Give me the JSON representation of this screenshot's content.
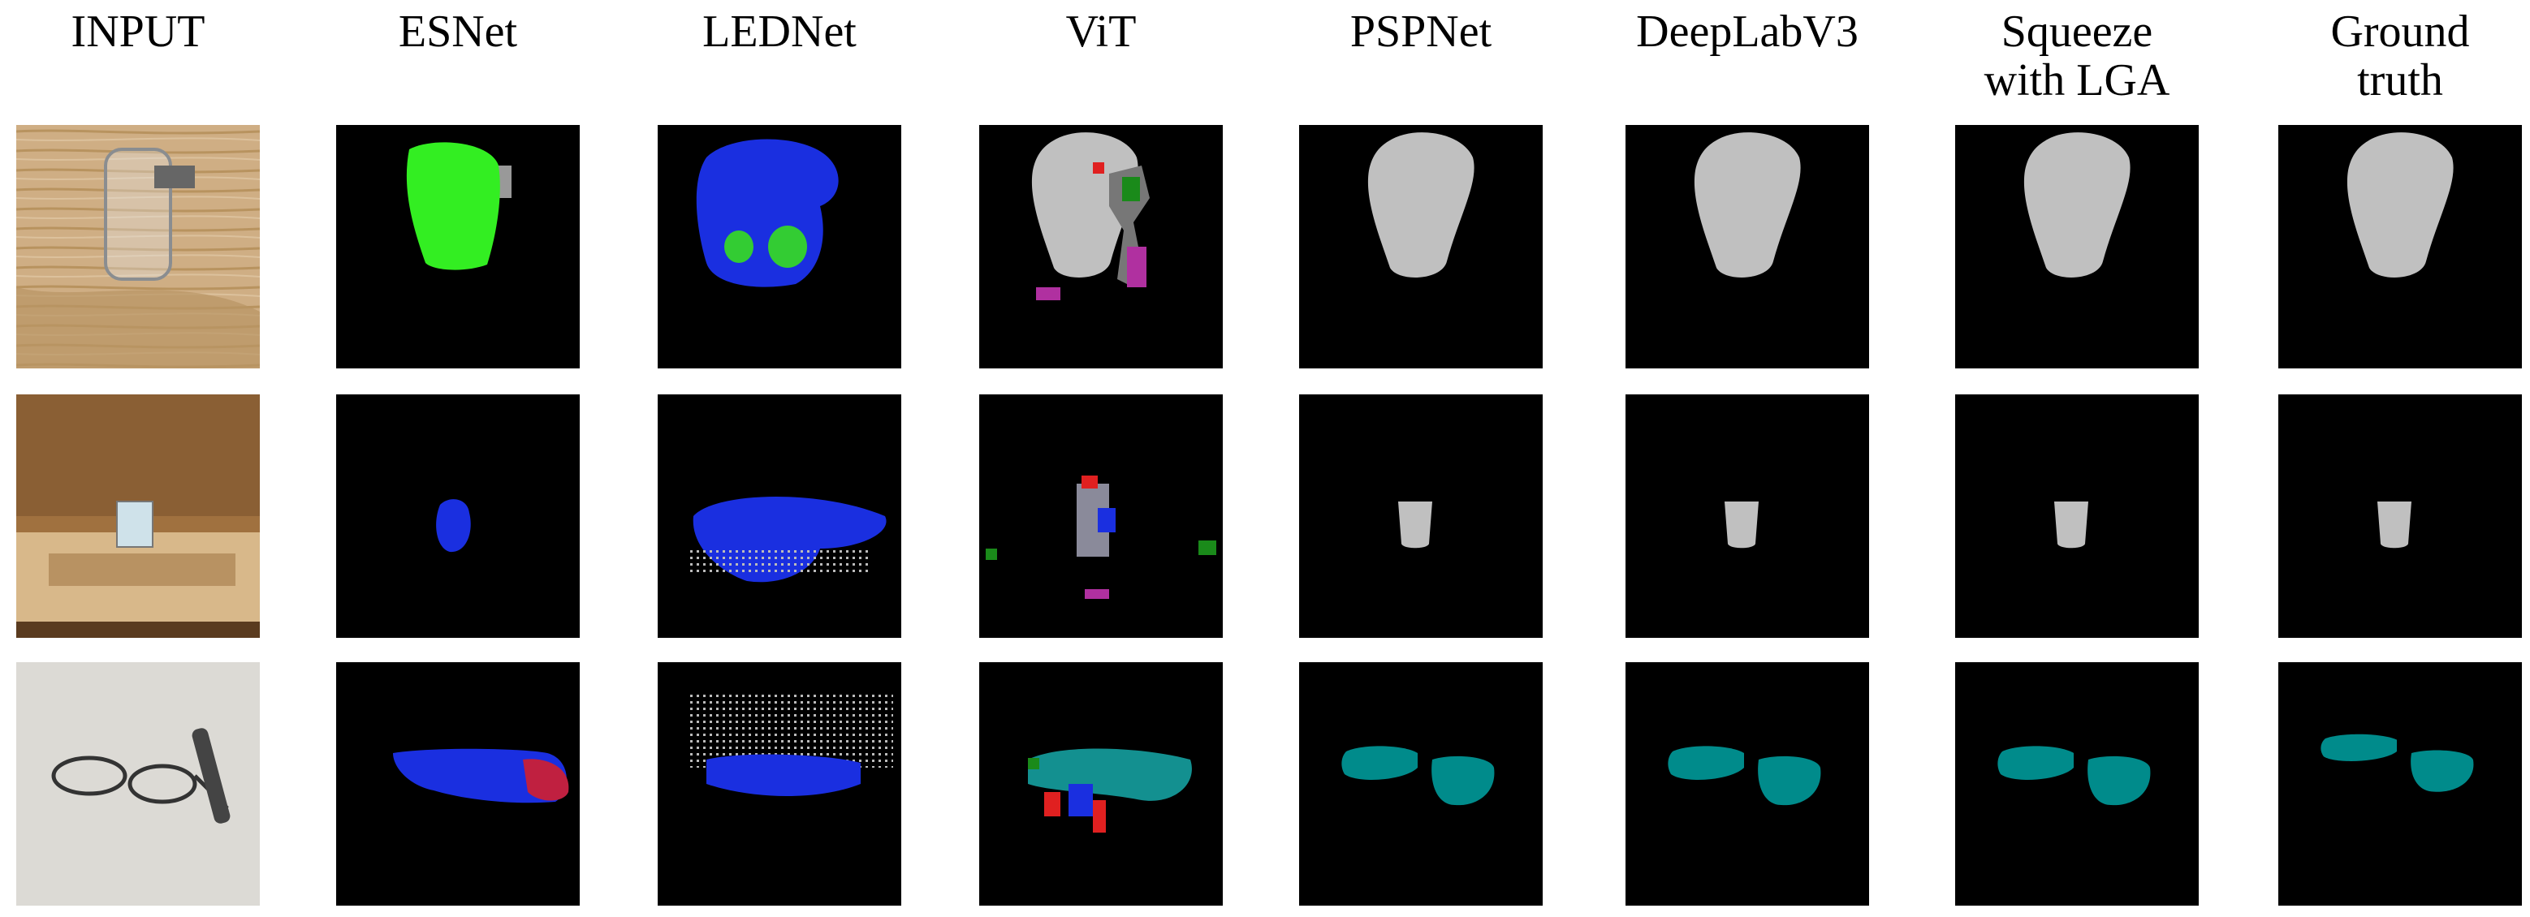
{
  "columns": [
    {
      "title": [
        "INPUT"
      ]
    },
    {
      "title": [
        "ESNet"
      ]
    },
    {
      "title": [
        "LEDNet"
      ]
    },
    {
      "title": [
        "ViT"
      ]
    },
    {
      "title": [
        "PSPNet"
      ]
    },
    {
      "title": [
        "DeepLabV3"
      ]
    },
    {
      "title": [
        "Squeeze",
        "with LGA"
      ]
    },
    {
      "title": [
        "Ground",
        "truth"
      ]
    }
  ]
}
